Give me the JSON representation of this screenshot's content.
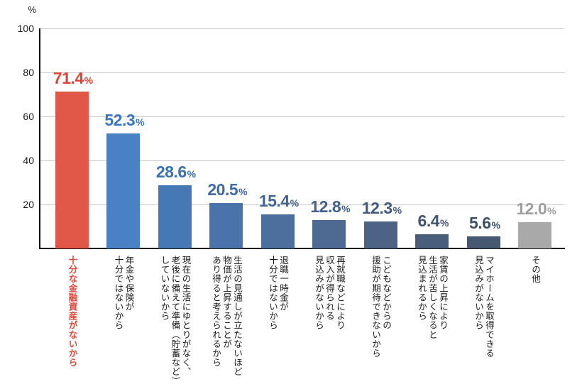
{
  "chart_data": {
    "type": "bar",
    "ylabel": "%",
    "ylim": [
      0,
      100
    ],
    "yticks": [
      20,
      40,
      60,
      80,
      100
    ],
    "grid": true,
    "value_suffix": "%",
    "categories": [
      "十分な金融資産がないから",
      "年金や保険が\n十分ではないから",
      "現在の生活にゆとりがなく、\n老後に備えて準備（貯蓄など）\nしていないから",
      "生活の見通しが立たないほど\n物価が上昇することが\nあり得ると考えられるから",
      "退職一時金が\n十分ではないから",
      "再就職などにより\n収入が得られる\n見込みがないから",
      "こどもなどからの\n援助が期待できないから",
      "家賃の上昇により\n生活が苦しくなると\n見込まれるから",
      "マイホームを取得できる\n見込みがないから",
      "その他"
    ],
    "values": [
      71.4,
      52.3,
      28.6,
      20.5,
      15.4,
      12.8,
      12.3,
      6.4,
      5.6,
      12.0
    ],
    "value_labels": [
      "71.4",
      "52.3",
      "28.6",
      "20.5",
      "15.4",
      "12.8",
      "12.3",
      "6.4",
      "5.6",
      "12.0"
    ],
    "bar_colors": [
      "#e25848",
      "#4a80c4",
      "#4678b5",
      "#4a73aa",
      "#4d6f9e",
      "#4e6992",
      "#4c6386",
      "#495e7b",
      "#475970",
      "#a9a9a9"
    ],
    "value_label_colors": [
      "#e04534",
      "#3b76c3",
      "#3a6fb2",
      "#3f6aa3",
      "#426695",
      "#43618a",
      "#425b7e",
      "#405572",
      "#3e5068",
      "#9e9e9e"
    ],
    "highlight_index": 0,
    "highlight_color": "#e0483a",
    "axis_color": "#111111",
    "gridline_color": "#cccccc",
    "tick_label_color": "#1a1a1a"
  }
}
